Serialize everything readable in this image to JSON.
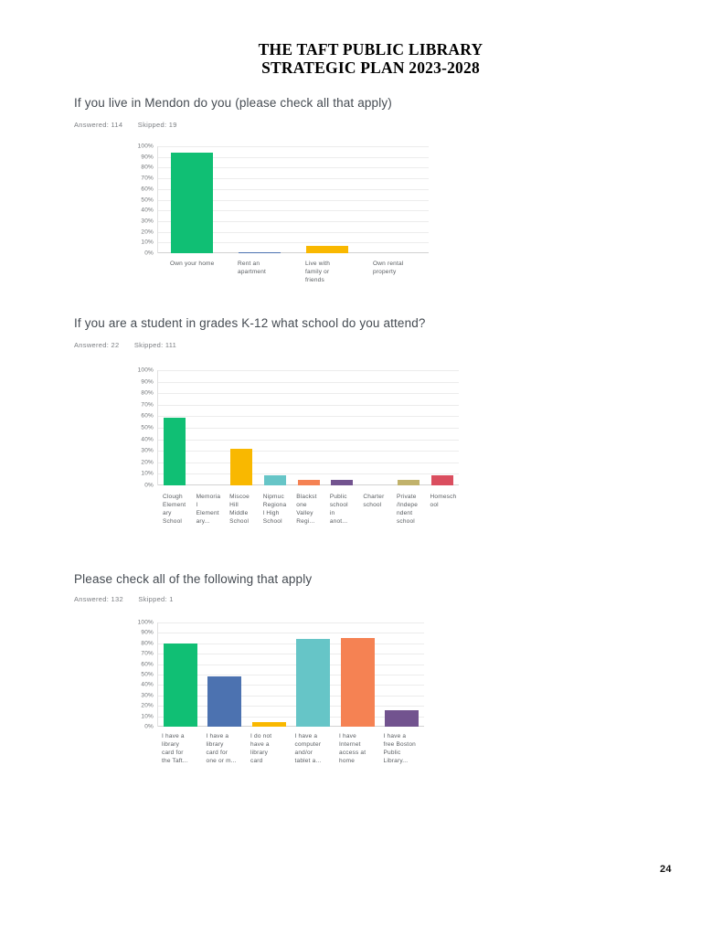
{
  "document": {
    "title_line1": "THE TAFT PUBLIC LIBRARY",
    "title_line2": "STRATEGIC PLAN 2023-2028",
    "page_number": "24"
  },
  "chart_data": [
    {
      "type": "bar",
      "title": "If you live in Mendon do you (please check all that apply)",
      "answered": "Answered: 114",
      "skipped": "Skipped: 19",
      "ylim": [
        0,
        100
      ],
      "grid": true,
      "legend": "none",
      "yticks": [
        "100%",
        "90%",
        "80%",
        "70%",
        "60%",
        "50%",
        "40%",
        "30%",
        "20%",
        "10%",
        "0%"
      ],
      "categories": [
        "Own your home",
        "Rent an\napartment",
        "Live with\nfamily or\nfriends",
        "Own rental\nproperty"
      ],
      "values": [
        93.86,
        0.88,
        7.02,
        0
      ],
      "colors": [
        "#10bf74",
        "#4c72b0",
        "#f9b800",
        "#66c5c7"
      ]
    },
    {
      "type": "bar",
      "title": "If you are a student in grades K-12 what school do you attend?",
      "answered": "Answered: 22",
      "skipped": "Skipped: 111",
      "ylim": [
        0,
        100
      ],
      "grid": true,
      "legend": "none",
      "yticks": [
        "100%",
        "90%",
        "80%",
        "70%",
        "60%",
        "50%",
        "40%",
        "30%",
        "20%",
        "10%",
        "0%"
      ],
      "categories": [
        "Clough\nElement\nary\nSchool",
        "Memoria\nl\nElement\nary...",
        "Miscoe\nHill\nMiddle\nSchool",
        "Nipmuc\nRegiona\nl High\nSchool",
        "Blackst\none\nValley\nRegi...",
        "Public\nschool\nin\nanot...",
        "Charter\nschool",
        "Private\n/Indepe\nndent\nschool",
        "Homesch\nool"
      ],
      "values": [
        59.09,
        0,
        31.82,
        9.09,
        4.55,
        4.55,
        0,
        4.55,
        9.09
      ],
      "colors": [
        "#10bf74",
        "#4c72b0",
        "#f9b800",
        "#66c5c7",
        "#f58253",
        "#72538f",
        "#9a9da0",
        "#c1b26b",
        "#da4e5f"
      ]
    },
    {
      "type": "bar",
      "title": "Please check all of the following that apply",
      "answered": "Answered: 132",
      "skipped": "Skipped: 1",
      "ylim": [
        0,
        100
      ],
      "grid": true,
      "legend": "none",
      "yticks": [
        "100%",
        "90%",
        "80%",
        "70%",
        "60%",
        "50%",
        "40%",
        "30%",
        "20%",
        "10%",
        "0%"
      ],
      "categories": [
        "I have a\nlibrary\ncard for\nthe Taft...",
        "I have a\nlibrary\ncard for\none or m...",
        "I do not\nhave a\nlibrary\ncard",
        "I have a\ncomputer\nand/or\ntablet a...",
        "I have\nInternet\naccess at\nhome",
        "I have a\nfree Boston\nPublic\nLibrary..."
      ],
      "values": [
        79.55,
        48.48,
        4.55,
        84.09,
        84.85,
        15.91
      ],
      "colors": [
        "#10bf74",
        "#4c72b0",
        "#f9b800",
        "#66c5c7",
        "#f58253",
        "#72538f"
      ]
    }
  ]
}
